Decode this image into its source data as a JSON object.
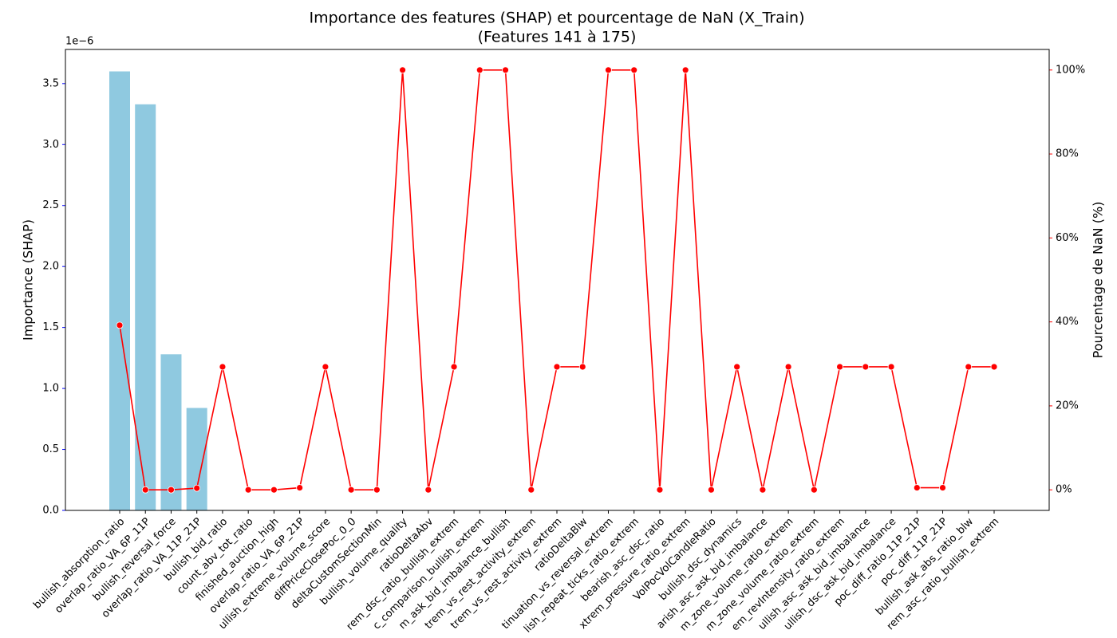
{
  "chart_data": {
    "type": "combo",
    "title": "Importance des features (SHAP) et pourcentage de NaN (X_Train)",
    "subtitle": "(Features 141 à 175)",
    "ylabel": "Importance (SHAP)",
    "y_offset_label": "1e−6",
    "y2label": "Pourcentage de NaN (%)",
    "categories": [
      "bullish_absorption_ratio",
      "overlap_ratio_VA_6P_11P",
      "bullish_reversal_force",
      "overlap_ratio_VA_11P_21P",
      "bullish_bid_ratio",
      "count_abv_tot_ratio",
      "finished_auction_high",
      "overlap_ratio_VA_6P_21P",
      "ullish_extreme_volume_score",
      "diffPriceClosePoc_0_0",
      "deltaCustomSectionMin",
      "bullish_volume_quality",
      "ratioDeltaAbv",
      "rem_dsc_ratio_bullish_extrem",
      "c_comparison_bullish_extrem",
      "m_ask_bid_imbalance_bullish",
      "trem_vs_rest_activity_extrem",
      "trem_vs_rest_activity_extrem",
      "ratioDeltaBlw",
      "tinuation_vs_reversal_extrem",
      "lish_repeat_ticks_ratio_extrem",
      "bearish_asc_dsc_ratio",
      "xtrem_pressure_ratio_extrem",
      "VolPocVolCandleRatio",
      "bullish_dsc_dynamics",
      "arish_asc_ask_bid_imbalance",
      "m_zone_volume_ratio_extrem",
      "m_zone_volume_ratio_extrem",
      "em_revIntensity_ratio_extrem",
      "ullish_asc_ask_bid_imbalance",
      "ullish_dsc_ask_bid_imbalance",
      "poc_diff_ratio_11P_21P",
      "poc_diff_11P_21P",
      "bullish_ask_abs_ratio_blw",
      "rem_asc_ratio_bullish_extrem"
    ],
    "series": [
      {
        "type": "bar",
        "color": "#8fc9e0",
        "values": [
          3.6,
          3.33,
          1.28,
          0.84,
          0,
          0,
          0,
          0,
          0,
          0,
          0,
          0,
          0,
          0,
          0,
          0,
          0,
          0,
          0,
          0,
          0,
          0,
          0,
          0,
          0,
          0,
          0,
          0,
          0,
          0,
          0,
          0,
          0,
          0,
          0
        ]
      },
      {
        "type": "line",
        "axis": "y2",
        "color": "#ff0000",
        "values": [
          39.2,
          0,
          0,
          0.4,
          29.3,
          0,
          0,
          0.5,
          29.3,
          0,
          0,
          100,
          0,
          29.3,
          100,
          100,
          0,
          29.3,
          29.3,
          100,
          100,
          0,
          100,
          0,
          29.3,
          0,
          29.3,
          0,
          29.3,
          29.3,
          29.3,
          0.5,
          0.5,
          29.3,
          29.3
        ]
      }
    ],
    "ylim": [
      0,
      3.78
    ],
    "yticks": [
      {
        "value": 0,
        "label": "0.0"
      },
      0.5,
      {
        "value": 1,
        "label": "1.0"
      },
      1.5,
      {
        "value": 2,
        "label": "2.0"
      },
      2.5,
      {
        "value": 3,
        "label": "3.0"
      },
      3.5
    ],
    "y2lim": [
      -4.9,
      104.9
    ],
    "y2ticks": [
      {
        "value": 0,
        "label": "0%"
      },
      {
        "value": 20,
        "label": "20%"
      },
      {
        "value": 40,
        "label": "40%"
      },
      {
        "value": 60,
        "label": "60%"
      },
      {
        "value": 80,
        "label": "80%"
      },
      {
        "value": 100,
        "label": "100%"
      }
    ],
    "ycolor": "#0000ff",
    "y2color": "#ff0000"
  }
}
